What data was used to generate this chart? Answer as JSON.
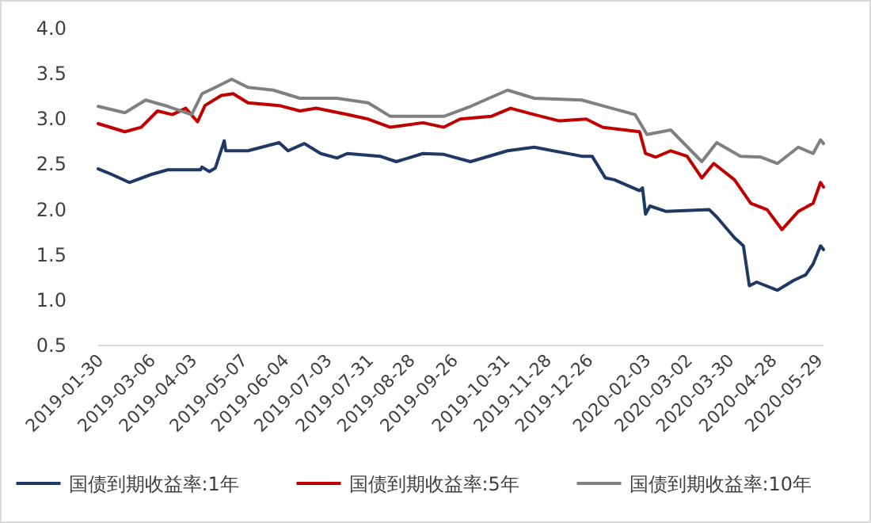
{
  "chart_data": {
    "type": "line",
    "xlim": [
      "2019-01-30",
      "2020-06-02"
    ],
    "xticks": [
      "2019-01-30",
      "2019-03-06",
      "2019-04-03",
      "2019-05-07",
      "2019-06-04",
      "2019-07-03",
      "2019-07-31",
      "2019-08-28",
      "2019-09-26",
      "2019-10-31",
      "2019-11-28",
      "2019-12-26",
      "2020-02-03",
      "2020-03-02",
      "2020-03-30",
      "2020-04-28",
      "2020-05-29"
    ],
    "ylim": [
      0.5,
      4
    ],
    "yticks": [
      0.5,
      {
        "value": 1,
        "label": "1.0"
      },
      1.5,
      {
        "value": 2,
        "label": "2.0"
      },
      2.5,
      {
        "value": 3,
        "label": "3.0"
      },
      3.5,
      {
        "value": 4,
        "label": "4.0"
      }
    ],
    "legend": "bottom",
    "line_style": "solid",
    "series": [
      {
        "name": "国债到期收益率:1年",
        "color": "#1f3864",
        "x": [
          "2019-01-30",
          "2019-02-08",
          "2019-02-20",
          "2019-03-07",
          "2019-03-18",
          "2019-04-09",
          "2019-04-10",
          "2019-04-15",
          "2019-04-19",
          "2019-04-25",
          "2019-04-26",
          "2019-05-11",
          "2019-06-01",
          "2019-06-07",
          "2019-06-18",
          "2019-06-29",
          "2019-07-10",
          "2019-07-17",
          "2019-08-08",
          "2019-08-19",
          "2019-09-06",
          "2019-09-20",
          "2019-10-08",
          "2019-11-02",
          "2019-11-20",
          "2019-12-22",
          "2019-12-29",
          "2020-01-07",
          "2020-01-13",
          "2020-01-30",
          "2020-02-01",
          "2020-02-03",
          "2020-02-06",
          "2020-02-17",
          "2020-03-17",
          "2020-03-22",
          "2020-04-03",
          "2020-04-09",
          "2020-04-13",
          "2020-04-18",
          "2020-05-02",
          "2020-05-13",
          "2020-05-21",
          "2020-05-26",
          "2020-05-31",
          "2020-06-02"
        ],
        "values": [
          2.45,
          2.39,
          2.3,
          2.39,
          2.44,
          2.44,
          2.47,
          2.42,
          2.46,
          2.76,
          2.65,
          2.65,
          2.74,
          2.65,
          2.73,
          2.62,
          2.57,
          2.62,
          2.59,
          2.53,
          2.62,
          2.61,
          2.53,
          2.65,
          2.69,
          2.59,
          2.59,
          2.35,
          2.33,
          2.21,
          2.24,
          1.95,
          2.04,
          1.98,
          2.0,
          1.92,
          1.69,
          1.6,
          1.16,
          1.2,
          1.11,
          1.22,
          1.28,
          1.4,
          1.6,
          1.56
        ]
      },
      {
        "name": "国债到期收益率:5年",
        "color": "#c00000",
        "x": [
          "2019-01-30",
          "2019-02-17",
          "2019-02-28",
          "2019-03-11",
          "2019-03-21",
          "2019-03-30",
          "2019-04-07",
          "2019-04-12",
          "2019-04-23",
          "2019-05-01",
          "2019-05-11",
          "2019-06-01",
          "2019-06-15",
          "2019-06-26",
          "2019-07-17",
          "2019-07-31",
          "2019-08-15",
          "2019-09-06",
          "2019-09-20",
          "2019-10-01",
          "2019-10-22",
          "2019-11-04",
          "2019-11-20",
          "2019-12-07",
          "2019-12-25",
          "2020-01-05",
          "2020-01-30",
          "2020-02-03",
          "2020-02-10",
          "2020-02-20",
          "2020-03-02",
          "2020-03-12",
          "2020-03-20",
          "2020-04-03",
          "2020-04-14",
          "2020-04-25",
          "2020-05-05",
          "2020-05-16",
          "2020-05-26",
          "2020-05-31",
          "2020-06-02"
        ],
        "values": [
          2.95,
          2.86,
          2.91,
          3.09,
          3.05,
          3.12,
          2.97,
          3.15,
          3.26,
          3.28,
          3.18,
          3.15,
          3.09,
          3.12,
          3.05,
          3.0,
          2.91,
          2.96,
          2.91,
          3.0,
          3.03,
          3.12,
          3.05,
          2.98,
          3.0,
          2.91,
          2.86,
          2.62,
          2.58,
          2.65,
          2.59,
          2.35,
          2.51,
          2.33,
          2.07,
          2.0,
          1.78,
          1.98,
          2.07,
          2.3,
          2.25
        ]
      },
      {
        "name": "国债到期收益率:10年",
        "color": "#808080",
        "x": [
          "2019-01-30",
          "2019-02-17",
          "2019-03-03",
          "2019-03-18",
          "2019-04-03",
          "2019-04-10",
          "2019-04-19",
          "2019-04-30",
          "2019-05-11",
          "2019-05-28",
          "2019-06-15",
          "2019-07-10",
          "2019-07-31",
          "2019-08-15",
          "2019-09-20",
          "2019-10-08",
          "2019-11-02",
          "2019-11-20",
          "2019-12-22",
          "2020-01-27",
          "2020-02-04",
          "2020-02-20",
          "2020-03-12",
          "2020-03-22",
          "2020-04-07",
          "2020-04-21",
          "2020-05-02",
          "2020-05-16",
          "2020-05-26",
          "2020-05-31",
          "2020-06-02"
        ],
        "values": [
          3.14,
          3.07,
          3.21,
          3.14,
          3.05,
          3.28,
          3.35,
          3.44,
          3.35,
          3.32,
          3.23,
          3.23,
          3.18,
          3.03,
          3.03,
          3.14,
          3.32,
          3.23,
          3.21,
          3.05,
          2.83,
          2.88,
          2.53,
          2.74,
          2.59,
          2.58,
          2.51,
          2.69,
          2.62,
          2.77,
          2.73
        ]
      }
    ]
  }
}
